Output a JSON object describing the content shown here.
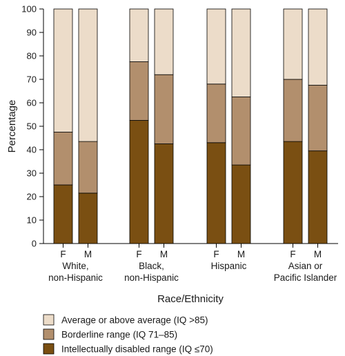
{
  "chart_data": {
    "type": "bar",
    "stacked": true,
    "ylabel": "Percentage",
    "xlabel": "Race/Ethnicity",
    "ylim": [
      0,
      100
    ],
    "yticks": [
      0,
      10,
      20,
      30,
      40,
      50,
      60,
      70,
      80,
      90,
      100
    ],
    "groups": [
      {
        "label_lines": [
          "White,",
          "non-Hispanic"
        ],
        "bars": [
          {
            "sex": "F",
            "values": [
              25,
              22.5,
              52.5
            ]
          },
          {
            "sex": "M",
            "values": [
              21.5,
              22,
              56.5
            ]
          }
        ]
      },
      {
        "label_lines": [
          "Black,",
          "non-Hispanic"
        ],
        "bars": [
          {
            "sex": "F",
            "values": [
              52.5,
              25,
              22.5
            ]
          },
          {
            "sex": "M",
            "values": [
              42.5,
              29.5,
              28
            ]
          }
        ]
      },
      {
        "label_lines": [
          "Hispanic"
        ],
        "bars": [
          {
            "sex": "F",
            "values": [
              43,
              25,
              32
            ]
          },
          {
            "sex": "M",
            "values": [
              33.5,
              29,
              37.5
            ]
          }
        ]
      },
      {
        "label_lines": [
          "Asian or",
          "Pacific Islander"
        ],
        "bars": [
          {
            "sex": "F",
            "values": [
              43.5,
              26.5,
              30
            ]
          },
          {
            "sex": "M",
            "values": [
              39.5,
              28,
              32.5
            ]
          }
        ]
      }
    ],
    "series": [
      {
        "name": "Intellectually disabled range (IQ ≤70)",
        "color": "#7a4f12"
      },
      {
        "name": "Borderline range (IQ 71–85)",
        "color": "#b28f6d"
      },
      {
        "name": "Average or above average (IQ >85)",
        "color": "#ecdcc9"
      }
    ],
    "legend": {
      "placement": "bottom-left",
      "order": [
        2,
        1,
        0
      ]
    }
  }
}
